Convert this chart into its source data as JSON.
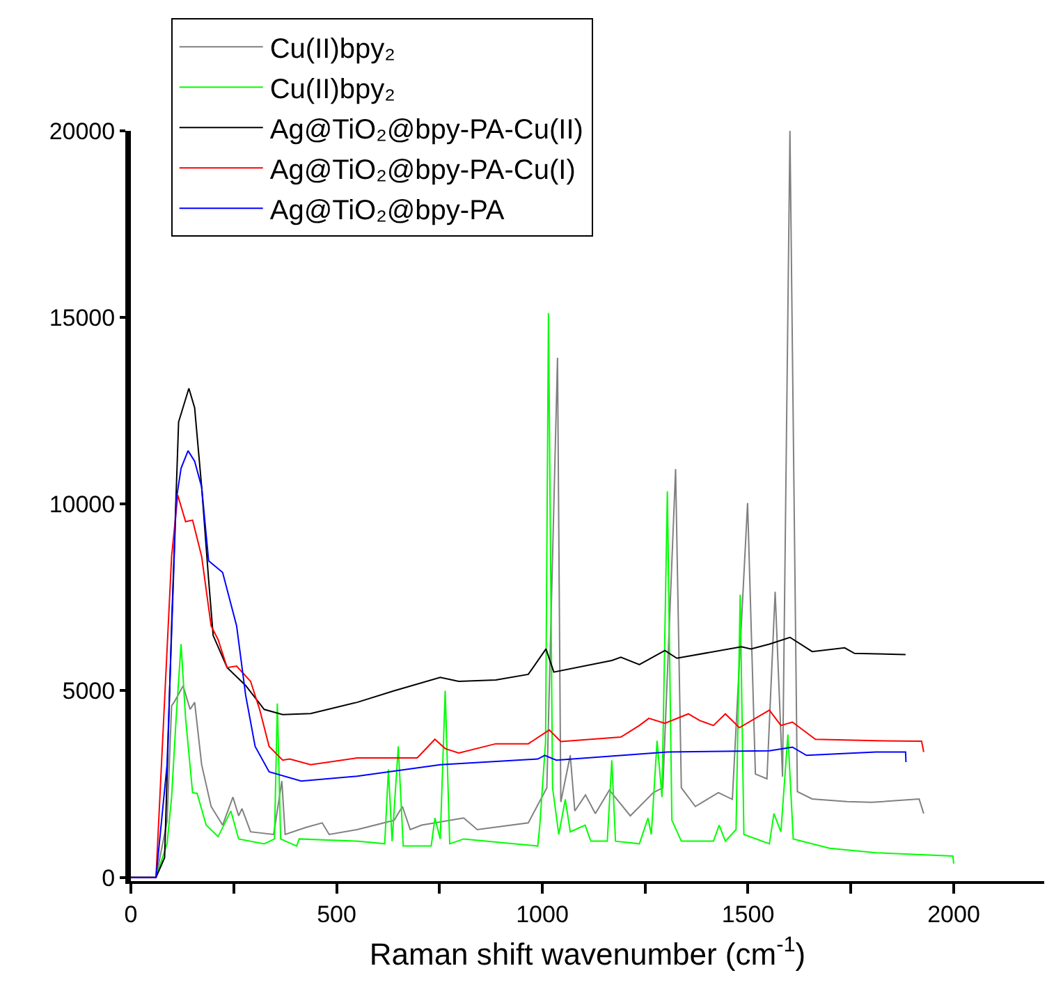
{
  "chart_data": {
    "type": "line",
    "xlabel": "Raman shift wavenumber (cm$^{-1}$)",
    "xlim": [
      0,
      2220
    ],
    "ylim": [
      -100,
      20000
    ],
    "xticks": [
      0,
      {
        "value": 250,
        "label": null
      },
      500,
      {
        "value": 750,
        "label": null
      },
      1000,
      {
        "value": 1250,
        "label": null
      },
      1500,
      {
        "value": 1750,
        "label": null
      },
      2000
    ],
    "yticks": [
      0,
      5000,
      10000,
      15000,
      20000
    ],
    "grid": false,
    "legend": "top left",
    "marker": "none",
    "line_style": "solid",
    "series": [
      {
        "name": "Cu(II)bpy₂",
        "color": "#808080",
        "x": [
          0,
          61,
          88,
          99,
          105,
          127,
          144,
          155,
          172,
          195,
          223,
          248,
          262,
          270,
          291,
          347,
          367,
          375,
          426,
          465,
          482,
          550,
          640,
          660,
          679,
          707,
          809,
          842,
          966,
          1011,
          1037,
          1045,
          1068,
          1079,
          1105,
          1129,
          1163,
          1214,
          1270,
          1293,
          1324,
          1338,
          1372,
          1428,
          1462,
          1499,
          1518,
          1546,
          1566,
          1584,
          1602,
          1620,
          1656,
          1741,
          1801,
          1916,
          1927
        ],
        "values": [
          0,
          0,
          1500,
          4600,
          4690,
          5130,
          4500,
          4690,
          3020,
          1900,
          1400,
          2150,
          1650,
          1840,
          1220,
          1150,
          2580,
          1150,
          1340,
          1460,
          1150,
          1280,
          1530,
          1900,
          1280,
          1400,
          1590,
          1280,
          1460,
          2400,
          13920,
          2020,
          3270,
          1780,
          2210,
          1710,
          2340,
          1650,
          2270,
          2400,
          10940,
          2400,
          1900,
          2270,
          2090,
          10030,
          2770,
          2640,
          7650,
          2700,
          20000,
          2300,
          2100,
          2030,
          2010,
          2100,
          1710
        ]
      },
      {
        "name": "Cu(II)bpy₂",
        "color": "#00ff00",
        "x": [
          0,
          61,
          88,
          99,
          110,
          122,
          133,
          150,
          161,
          183,
          212,
          243,
          262,
          324,
          349,
          356,
          364,
          403,
          409,
          550,
          617,
          626,
          635,
          650,
          662,
          730,
          739,
          752,
          764,
          775,
          809,
          989,
          994,
          1008,
          1015,
          1025,
          1040,
          1056,
          1068,
          1104,
          1118,
          1158,
          1169,
          1178,
          1236,
          1257,
          1265,
          1279,
          1291,
          1304,
          1315,
          1338,
          1416,
          1430,
          1445,
          1471,
          1481,
          1490,
          1552,
          1563,
          1580,
          1597,
          1610,
          1698,
          1811,
          1998,
          2000
        ],
        "values": [
          0,
          0,
          900,
          2150,
          4260,
          6250,
          4260,
          2270,
          2250,
          1400,
          1090,
          1780,
          1030,
          900,
          1030,
          4660,
          1030,
          840,
          1030,
          970,
          900,
          2890,
          970,
          3510,
          840,
          840,
          1590,
          1030,
          5000,
          900,
          1030,
          840,
          1400,
          3640,
          15120,
          2400,
          1150,
          2090,
          1220,
          1400,
          970,
          970,
          3140,
          970,
          900,
          1590,
          1150,
          3660,
          2150,
          10340,
          1530,
          970,
          970,
          1400,
          970,
          1280,
          7570,
          1150,
          900,
          1710,
          1220,
          3830,
          1030,
          780,
          660,
          570,
          370
        ]
      },
      {
        "name": "Ag@TiO₂@bpy-PA-Cu(II)",
        "color": "#000000",
        "x": [
          0,
          61,
          82,
          99,
          116,
          141,
          155,
          172,
          189,
          200,
          234,
          279,
          324,
          369,
          437,
          550,
          640,
          752,
          797,
          887,
          966,
          1009,
          1028,
          1169,
          1191,
          1236,
          1298,
          1327,
          1484,
          1507,
          1552,
          1602,
          1656,
          1735,
          1759,
          1883
        ],
        "values": [
          0,
          0,
          530,
          6740,
          12200,
          13100,
          12580,
          10460,
          7970,
          6480,
          5620,
          5140,
          4500,
          4360,
          4390,
          4690,
          5000,
          5360,
          5250,
          5290,
          5440,
          6120,
          5500,
          5810,
          5900,
          5700,
          6080,
          5870,
          6180,
          6120,
          6250,
          6430,
          6050,
          6150,
          6000,
          5970
        ]
      },
      {
        "name": "Ag@TiO₂@bpy-PA-Cu(I)",
        "color": "#ff0000",
        "x": [
          0,
          61,
          99,
          114,
          133,
          150,
          172,
          195,
          212,
          234,
          257,
          291,
          313,
          336,
          369,
          386,
          437,
          550,
          696,
          739,
          764,
          797,
          887,
          966,
          1017,
          1045,
          1191,
          1236,
          1259,
          1298,
          1355,
          1383,
          1416,
          1445,
          1479,
          1552,
          1580,
          1608,
          1664,
          1811,
          1922,
          1927
        ],
        "values": [
          0,
          0,
          8600,
          10240,
          9530,
          9570,
          8600,
          6740,
          6370,
          5620,
          5660,
          5250,
          4500,
          3510,
          3140,
          3170,
          3020,
          3200,
          3200,
          3700,
          3450,
          3330,
          3580,
          3580,
          3950,
          3640,
          3760,
          4070,
          4260,
          4130,
          4380,
          4200,
          4070,
          4380,
          4010,
          4480,
          4070,
          4160,
          3700,
          3660,
          3650,
          3360
        ]
      },
      {
        "name": "Ag@TiO₂@bpy-PA",
        "color": "#0000ff",
        "x": [
          0,
          61,
          88,
          110,
          122,
          139,
          155,
          172,
          189,
          223,
          257,
          279,
          302,
          336,
          414,
          550,
          752,
          989,
          1006,
          1034,
          1304,
          1552,
          1608,
          1642,
          1811,
          1883,
          1884
        ],
        "values": [
          0,
          0,
          3020,
          10090,
          10960,
          11430,
          11150,
          10460,
          8480,
          8170,
          6740,
          4880,
          3510,
          2830,
          2580,
          2710,
          3020,
          3170,
          3270,
          3140,
          3360,
          3390,
          3490,
          3270,
          3360,
          3360,
          3090
        ]
      }
    ]
  }
}
